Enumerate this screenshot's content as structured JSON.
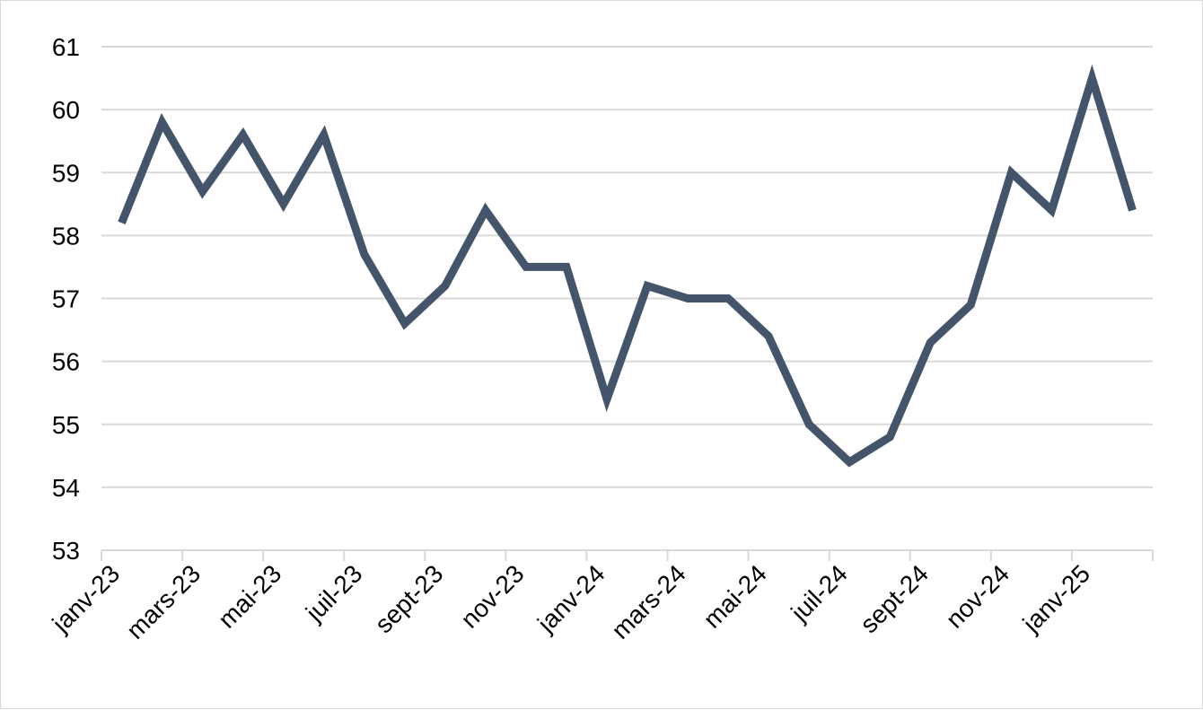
{
  "chart_data": {
    "type": "line",
    "title": "",
    "xlabel": "",
    "ylabel": "",
    "ylim": [
      53,
      61
    ],
    "yticks": [
      53,
      54,
      55,
      56,
      57,
      58,
      59,
      60,
      61
    ],
    "grid": true,
    "legend": "none",
    "x_tick_labels": [
      "janv-23",
      "mars-23",
      "mai-23",
      "juil-23",
      "sept-23",
      "nov-23",
      "janv-24",
      "mars-24",
      "mai-24",
      "juil-24",
      "sept-24",
      "nov-24",
      "janv-25"
    ],
    "x": [
      "2023-01",
      "2023-02",
      "2023-03",
      "2023-04",
      "2023-05",
      "2023-06",
      "2023-07",
      "2023-08",
      "2023-09",
      "2023-10",
      "2023-11",
      "2023-12",
      "2024-01",
      "2024-02",
      "2024-03",
      "2024-04",
      "2024-05",
      "2024-06",
      "2024-07",
      "2024-08",
      "2024-09",
      "2024-10",
      "2024-11",
      "2024-12",
      "2025-01",
      "2025-02"
    ],
    "series": [
      {
        "color": "#44546a",
        "values": [
          58.2,
          59.8,
          58.7,
          59.6,
          58.5,
          59.6,
          57.7,
          56.6,
          57.2,
          58.4,
          57.5,
          57.5,
          55.4,
          57.2,
          57.0,
          57.0,
          56.4,
          55.0,
          54.4,
          54.8,
          56.3,
          56.9,
          59.0,
          58.4,
          60.5,
          58.4
        ]
      }
    ],
    "colors": {
      "gridline": "#d9d9d9",
      "axis": "#d9d9d9",
      "text": "#000000"
    }
  }
}
